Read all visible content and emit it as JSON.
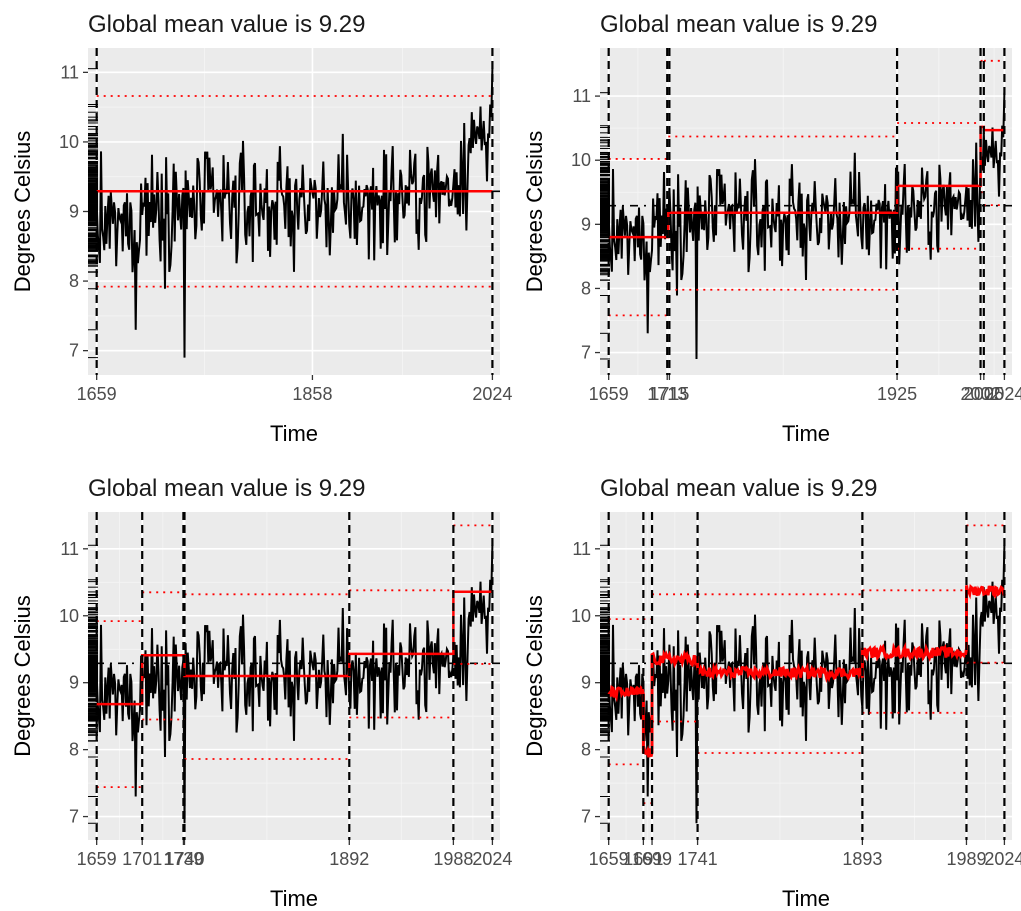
{
  "chart_data": [
    {
      "type": "line",
      "title": "Global mean value is 9.29",
      "xlabel": "Time",
      "ylabel": "Degrees Celsius",
      "xlim": [
        1651,
        2031
      ],
      "ylim": [
        6.65,
        11.35
      ],
      "x_ticks": [
        1659,
        1858,
        2024
      ],
      "y_ticks": [
        7,
        8,
        9,
        10,
        11
      ],
      "global_mean": 9.29,
      "changepoints": [
        1659,
        2024
      ],
      "segments": [
        {
          "start": 1659,
          "end": 2024,
          "mean": 9.29,
          "upper": 10.66,
          "lower": 7.92
        }
      ]
    },
    {
      "type": "line",
      "title": "Global mean value is 9.29",
      "xlabel": "Time",
      "ylabel": "Degrees Celsius",
      "xlim": [
        1651,
        2031
      ],
      "ylim": [
        6.65,
        11.75
      ],
      "x_ticks": [
        1659,
        1713,
        1715,
        1925,
        2002,
        2005,
        2024
      ],
      "y_ticks": [
        7,
        8,
        9,
        10,
        11
      ],
      "global_mean": 9.29,
      "changepoints": [
        1659,
        1713,
        1715,
        1925,
        2002,
        2005,
        2024
      ],
      "segments": [
        {
          "start": 1659,
          "end": 1714,
          "mean": 8.8,
          "upper": 10.02,
          "lower": 7.58
        },
        {
          "start": 1714,
          "end": 1925,
          "mean": 9.18,
          "upper": 10.37,
          "lower": 7.98
        },
        {
          "start": 1925,
          "end": 2002,
          "mean": 9.6,
          "upper": 10.58,
          "lower": 8.62
        },
        {
          "start": 2002,
          "end": 2005,
          "mean": 10.52,
          "upper": 11.55,
          "lower": 9.5
        },
        {
          "start": 2005,
          "end": 2024,
          "mean": 10.47,
          "upper": 11.55,
          "lower": 9.3
        }
      ]
    },
    {
      "type": "line",
      "title": "Global mean value is 9.29",
      "xlabel": "Time",
      "ylabel": "Degrees Celsius",
      "xlim": [
        1651,
        2031
      ],
      "ylim": [
        6.65,
        11.55
      ],
      "x_ticks": [
        1659,
        1701,
        1739,
        1740,
        1892,
        1988,
        2024
      ],
      "y_ticks": [
        7,
        8,
        9,
        10,
        11
      ],
      "global_mean": 9.29,
      "changepoints": [
        1659,
        1701,
        1739,
        1740,
        1892,
        1988,
        2024
      ],
      "segments": [
        {
          "start": 1659,
          "end": 1701,
          "mean": 8.68,
          "upper": 9.92,
          "lower": 7.44
        },
        {
          "start": 1701,
          "end": 1740,
          "mean": 9.41,
          "upper": 10.35,
          "lower": 8.45
        },
        {
          "start": 1740,
          "end": 1892,
          "mean": 9.1,
          "upper": 10.32,
          "lower": 7.86
        },
        {
          "start": 1892,
          "end": 1988,
          "mean": 9.43,
          "upper": 10.38,
          "lower": 8.48
        },
        {
          "start": 1988,
          "end": 2024,
          "mean": 10.36,
          "upper": 11.35,
          "lower": 9.28
        }
      ]
    },
    {
      "type": "line",
      "title": "Global mean value is 9.29",
      "xlabel": "Time",
      "ylabel": "Degrees Celsius",
      "xlim": [
        1651,
        2031
      ],
      "ylim": [
        6.65,
        11.55
      ],
      "x_ticks": [
        1659,
        1691,
        1699,
        1741,
        1893,
        1989,
        2024
      ],
      "x_tick_labels_visible": [
        "1659",
        "1691",
        "1699",
        "1741",
        "1893",
        "1989",
        "2024"
      ],
      "y_ticks": [
        7,
        8,
        9,
        10,
        11
      ],
      "global_mean": 9.29,
      "changepoints": [
        1659,
        1691,
        1699,
        1741,
        1893,
        1989,
        2024
      ],
      "segments": [
        {
          "start": 1659,
          "end": 1691,
          "mean": 8.85,
          "upper": 9.95,
          "lower": 7.78
        },
        {
          "start": 1691,
          "end": 1699,
          "mean": 7.95,
          "upper": 9.95,
          "lower": 7.2
        },
        {
          "start": 1699,
          "end": 1741,
          "mean": 9.35,
          "upper": 10.32,
          "lower": 8.42
        },
        {
          "start": 1741,
          "end": 1893,
          "mean": 9.15,
          "upper": 10.32,
          "lower": 7.95
        },
        {
          "start": 1893,
          "end": 1989,
          "mean": 9.45,
          "upper": 10.38,
          "lower": 8.55
        },
        {
          "start": 1989,
          "end": 2024,
          "mean": 10.38,
          "upper": 11.35,
          "lower": 9.3
        }
      ]
    }
  ]
}
